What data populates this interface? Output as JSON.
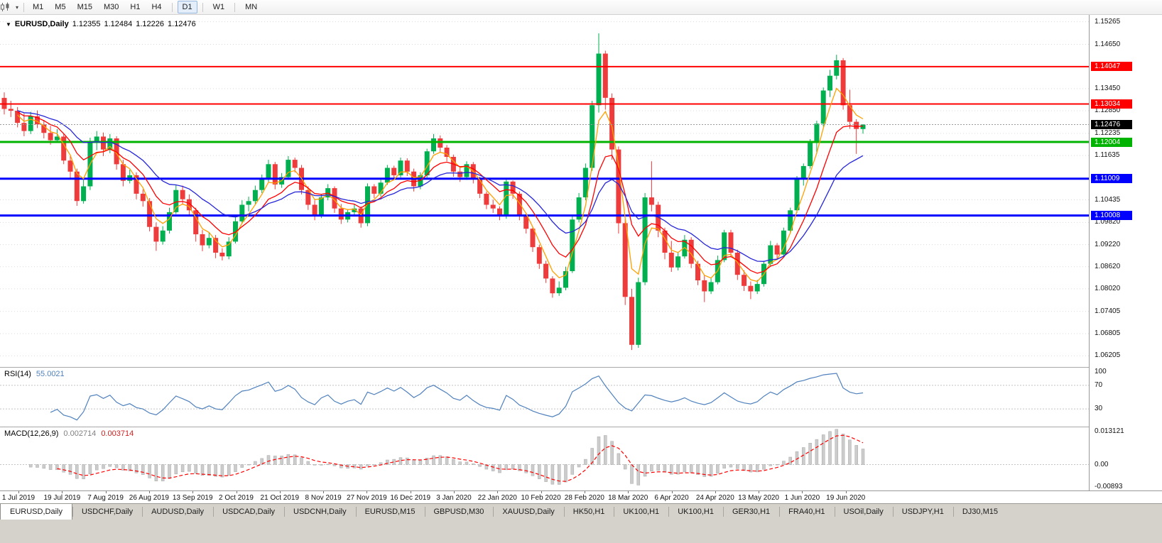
{
  "icons": {
    "chart_collapse": "▼",
    "dropdown_caret": "▾"
  },
  "toolbar": {
    "timeframes": [
      {
        "label": "M1"
      },
      {
        "label": "M5"
      },
      {
        "label": "M15"
      },
      {
        "label": "M30"
      },
      {
        "label": "H1"
      },
      {
        "label": "H4",
        "sep_after": true
      },
      {
        "label": "D1",
        "active": true,
        "sep_after": true
      },
      {
        "label": "W1",
        "sep_after": true
      },
      {
        "label": "MN"
      }
    ]
  },
  "chart": {
    "title": {
      "symbol": "EURUSD,Daily",
      "open": "1.12355",
      "high": "1.12484",
      "low": "1.12226",
      "close": "1.12476"
    },
    "axis": {
      "price_ticks": [
        "1.15265",
        "1.14650",
        "1.13450",
        "1.12850",
        "1.12235",
        "1.11635",
        "1.10435",
        "1.09820",
        "1.09220",
        "1.08620",
        "1.08020",
        "1.07405",
        "1.06805",
        "1.06205"
      ]
    },
    "levels": [
      {
        "price": 1.14047,
        "label": "1.14047",
        "color": "#ff0000",
        "thickness": 2
      },
      {
        "price": 1.13034,
        "label": "1.13034",
        "color": "#ff0000",
        "thickness": 2
      },
      {
        "price": 1.12004,
        "label": "1.12004",
        "color": "#00b300",
        "thickness": 3
      },
      {
        "price": 1.11009,
        "label": "1.11009",
        "color": "#0000ff",
        "thickness": 3
      },
      {
        "price": 1.10008,
        "label": "1.10008",
        "color": "#0000ff",
        "thickness": 3
      }
    ],
    "current_price": {
      "price": 1.12476,
      "label": "1.12476",
      "color": "#000000"
    }
  },
  "chart_data": {
    "type": "candlestick",
    "symbol": "EURUSD",
    "timeframe": "Daily",
    "title": "EURUSD,Daily",
    "grid": true,
    "price_range": {
      "top": 1.1545,
      "bottom": 1.059
    },
    "x_labels": [
      "1 Jul 2019",
      "19 Jul 2019",
      "7 Aug 2019",
      "26 Aug 2019",
      "13 Sep 2019",
      "2 Oct 2019",
      "21 Oct 2019",
      "8 Nov 2019",
      "27 Nov 2019",
      "16 Dec 2019",
      "3 Jan 2020",
      "22 Jan 2020",
      "10 Feb 2020",
      "28 Feb 2020",
      "18 Mar 2020",
      "6 Apr 2020",
      "24 Apr 2020",
      "13 May 2020",
      "1 Jun 2020",
      "19 Jun 2020"
    ],
    "candles": [
      [
        1.132,
        1.1335,
        1.1275,
        1.129
      ],
      [
        1.129,
        1.1312,
        1.1268,
        1.1285
      ],
      [
        1.1285,
        1.1295,
        1.124,
        1.1252
      ],
      [
        1.1252,
        1.1278,
        1.1216,
        1.123
      ],
      [
        1.123,
        1.1282,
        1.1222,
        1.127
      ],
      [
        1.127,
        1.1286,
        1.1238,
        1.1248
      ],
      [
        1.1248,
        1.126,
        1.121,
        1.1225
      ],
      [
        1.1225,
        1.1244,
        1.1193,
        1.1205
      ],
      [
        1.1205,
        1.1235,
        1.1198,
        1.1215
      ],
      [
        1.1215,
        1.1222,
        1.114,
        1.115
      ],
      [
        1.115,
        1.1162,
        1.1102,
        1.112
      ],
      [
        1.112,
        1.1128,
        1.1027,
        1.104
      ],
      [
        1.104,
        1.1098,
        1.1033,
        1.108
      ],
      [
        1.108,
        1.1212,
        1.107,
        1.12
      ],
      [
        1.12,
        1.123,
        1.1178,
        1.1215
      ],
      [
        1.1215,
        1.1226,
        1.1162,
        1.118
      ],
      [
        1.118,
        1.1222,
        1.117,
        1.121
      ],
      [
        1.121,
        1.1216,
        1.1125,
        1.114
      ],
      [
        1.114,
        1.1152,
        1.108,
        1.1095
      ],
      [
        1.1095,
        1.1125,
        1.1088,
        1.111
      ],
      [
        1.111,
        1.1118,
        1.1045,
        1.106
      ],
      [
        1.106,
        1.1072,
        1.1025,
        1.104
      ],
      [
        1.104,
        1.1048,
        1.0958,
        1.097
      ],
      [
        1.097,
        1.0982,
        1.0905,
        1.093
      ],
      [
        1.093,
        1.0972,
        1.0922,
        1.096
      ],
      [
        1.096,
        1.1022,
        1.0952,
        1.101
      ],
      [
        1.101,
        1.1085,
        1.1005,
        1.107
      ],
      [
        1.107,
        1.1082,
        1.103,
        1.1045
      ],
      [
        1.1045,
        1.1058,
        1.0998,
        1.1015
      ],
      [
        1.1015,
        1.1022,
        1.093,
        1.095
      ],
      [
        1.095,
        1.0962,
        1.0904,
        1.092
      ],
      [
        1.092,
        1.0955,
        1.0912,
        1.094
      ],
      [
        1.094,
        1.0948,
        1.0885,
        1.09
      ],
      [
        1.09,
        1.0912,
        1.0879,
        1.089
      ],
      [
        1.089,
        1.0942,
        1.0882,
        1.093
      ],
      [
        1.093,
        1.0996,
        1.0925,
        1.0985
      ],
      [
        1.0985,
        1.1042,
        1.098,
        1.103
      ],
      [
        1.103,
        1.1052,
        1.1012,
        1.104
      ],
      [
        1.104,
        1.1082,
        1.1032,
        1.107
      ],
      [
        1.107,
        1.1112,
        1.1062,
        1.11
      ],
      [
        1.11,
        1.1152,
        1.1092,
        1.114
      ],
      [
        1.114,
        1.1146,
        1.1072,
        1.1085
      ],
      [
        1.1085,
        1.1116,
        1.1076,
        1.1105
      ],
      [
        1.1105,
        1.1162,
        1.1098,
        1.1152
      ],
      [
        1.1152,
        1.1158,
        1.1118,
        1.113
      ],
      [
        1.113,
        1.1138,
        1.1058,
        1.107
      ],
      [
        1.107,
        1.108,
        1.1016,
        1.103
      ],
      [
        1.103,
        1.1042,
        1.0988,
        1.1
      ],
      [
        1.1,
        1.1058,
        1.0994,
        1.105
      ],
      [
        1.105,
        1.1086,
        1.1042,
        1.1075
      ],
      [
        1.1075,
        1.108,
        1.1008,
        1.102
      ],
      [
        1.102,
        1.1032,
        1.0978,
        1.099
      ],
      [
        1.099,
        1.1018,
        1.0982,
        1.101
      ],
      [
        1.101,
        1.1032,
        1.1,
        1.102
      ],
      [
        1.102,
        1.1026,
        1.0968,
        1.098
      ],
      [
        1.098,
        1.1088,
        1.0972,
        1.108
      ],
      [
        1.108,
        1.1086,
        1.1048,
        1.106
      ],
      [
        1.106,
        1.1098,
        1.1052,
        1.109
      ],
      [
        1.109,
        1.1138,
        1.1084,
        1.113
      ],
      [
        1.113,
        1.1136,
        1.1098,
        1.111
      ],
      [
        1.111,
        1.1158,
        1.1104,
        1.115
      ],
      [
        1.115,
        1.1156,
        1.1108,
        1.112
      ],
      [
        1.112,
        1.1128,
        1.1066,
        1.108
      ],
      [
        1.108,
        1.1118,
        1.1072,
        1.111
      ],
      [
        1.111,
        1.1182,
        1.1104,
        1.1175
      ],
      [
        1.1175,
        1.1222,
        1.1168,
        1.121
      ],
      [
        1.121,
        1.1218,
        1.1172,
        1.1185
      ],
      [
        1.1185,
        1.1192,
        1.1148,
        1.116
      ],
      [
        1.116,
        1.1166,
        1.1106,
        1.112
      ],
      [
        1.112,
        1.1132,
        1.1092,
        1.1105
      ],
      [
        1.1105,
        1.1148,
        1.1098,
        1.114
      ],
      [
        1.114,
        1.1146,
        1.1088,
        1.11
      ],
      [
        1.11,
        1.1106,
        1.1048,
        1.106
      ],
      [
        1.106,
        1.1066,
        1.1018,
        1.103
      ],
      [
        1.103,
        1.1044,
        1.1008,
        1.102
      ],
      [
        1.102,
        1.1026,
        1.0988,
        1.1
      ],
      [
        1.1,
        1.1098,
        1.0992,
        1.1093
      ],
      [
        1.1093,
        1.1096,
        1.1046,
        1.106
      ],
      [
        1.106,
        1.1066,
        1.0988,
        1.1
      ],
      [
        1.1,
        1.1008,
        1.0952,
        1.0965
      ],
      [
        1.0965,
        1.0972,
        1.0902,
        1.0915
      ],
      [
        1.0915,
        1.0922,
        1.0856,
        1.087
      ],
      [
        1.087,
        1.0878,
        1.0818,
        1.083
      ],
      [
        1.083,
        1.0836,
        1.0778,
        1.079
      ],
      [
        1.079,
        1.0822,
        1.0783,
        1.0805
      ],
      [
        1.0805,
        1.0862,
        1.0798,
        1.085
      ],
      [
        1.085,
        1.0998,
        1.0845,
        1.099
      ],
      [
        1.099,
        1.1062,
        1.0982,
        1.105
      ],
      [
        1.105,
        1.1142,
        1.1042,
        1.113
      ],
      [
        1.113,
        1.1312,
        1.1122,
        1.13
      ],
      [
        1.13,
        1.1495,
        1.128,
        1.144
      ],
      [
        1.144,
        1.1448,
        1.1288,
        1.132
      ],
      [
        1.132,
        1.1332,
        1.1152,
        1.118
      ],
      [
        1.118,
        1.1188,
        1.0952,
        1.098
      ],
      [
        1.098,
        1.0992,
        1.0758,
        1.078
      ],
      [
        1.078,
        1.0802,
        1.0636,
        1.065
      ],
      [
        1.065,
        1.0832,
        1.0642,
        1.082
      ],
      [
        1.082,
        1.1062,
        1.0812,
        1.105
      ],
      [
        1.105,
        1.1148,
        1.1012,
        1.103
      ],
      [
        1.103,
        1.1038,
        1.0942,
        1.096
      ],
      [
        1.096,
        1.0968,
        1.0882,
        1.09
      ],
      [
        1.09,
        1.0932,
        1.0848,
        1.086
      ],
      [
        1.086,
        1.0902,
        1.0852,
        1.089
      ],
      [
        1.089,
        1.0948,
        1.0884,
        1.0935
      ],
      [
        1.0935,
        1.0942,
        1.0858,
        1.087
      ],
      [
        1.087,
        1.0878,
        1.0812,
        1.0825
      ],
      [
        1.0825,
        1.0838,
        1.0766,
        1.0795
      ],
      [
        1.0795,
        1.0832,
        1.0788,
        1.082
      ],
      [
        1.082,
        1.0892,
        1.0814,
        1.088
      ],
      [
        1.088,
        1.0962,
        1.0874,
        1.0955
      ],
      [
        1.0955,
        1.0962,
        1.0888,
        1.09
      ],
      [
        1.09,
        1.0908,
        1.0826,
        1.084
      ],
      [
        1.084,
        1.0852,
        1.0796,
        1.081
      ],
      [
        1.081,
        1.0822,
        1.0774,
        1.0795
      ],
      [
        1.0795,
        1.0826,
        1.0788,
        1.0815
      ],
      [
        1.0815,
        1.0878,
        1.0808,
        1.087
      ],
      [
        1.087,
        1.0932,
        1.0864,
        1.092
      ],
      [
        1.092,
        1.0926,
        1.0882,
        1.0895
      ],
      [
        1.0895,
        1.0968,
        1.0888,
        1.096
      ],
      [
        1.096,
        1.1022,
        1.0954,
        1.1015
      ],
      [
        1.1015,
        1.1108,
        1.1008,
        1.11
      ],
      [
        1.11,
        1.1142,
        1.1082,
        1.1135
      ],
      [
        1.1135,
        1.1208,
        1.1128,
        1.12
      ],
      [
        1.12,
        1.1258,
        1.1168,
        1.125
      ],
      [
        1.125,
        1.1348,
        1.1242,
        1.134
      ],
      [
        1.134,
        1.1396,
        1.1322,
        1.138
      ],
      [
        1.138,
        1.1437,
        1.137,
        1.1422
      ],
      [
        1.1422,
        1.1428,
        1.1288,
        1.13
      ],
      [
        1.13,
        1.1342,
        1.1236,
        1.1255
      ],
      [
        1.1255,
        1.1262,
        1.1168,
        1.12355
      ],
      [
        1.12355,
        1.12484,
        1.12226,
        1.12476
      ]
    ],
    "moving_averages": [
      {
        "name": "fast-ma",
        "period": 4,
        "method": "ema",
        "color": "#ffa000"
      },
      {
        "name": "mid-ma",
        "period": 9,
        "method": "ema",
        "color": "#ff0000"
      },
      {
        "name": "slow-ma",
        "period": 18,
        "method": "ema",
        "color": "#2626d8"
      }
    ],
    "indicators": {
      "rsi": {
        "label": "RSI(14)",
        "value": "55.0021",
        "levels": [
          70,
          30
        ],
        "scale": [
          0,
          100
        ],
        "axis_labels": [
          "100",
          "70",
          "30"
        ],
        "color": "#4f81bd"
      },
      "macd": {
        "label": "MACD(12,26,9)",
        "values": [
          "0.002714",
          "0.003714"
        ],
        "axis_labels": [
          "0.013121",
          "0.00",
          "-0.00893"
        ],
        "scale_max": 0.0138,
        "scale_min": -0.0096,
        "hist_color": "#cccccc",
        "hist_border": "#a8a8a8",
        "signal_color": "#ff0000"
      }
    }
  },
  "tabs": [
    {
      "label": "EURUSD,Daily",
      "active": true
    },
    {
      "label": "USDCHF,Daily"
    },
    {
      "label": "AUDUSD,Daily"
    },
    {
      "label": "USDCAD,Daily"
    },
    {
      "label": "USDCNH,Daily"
    },
    {
      "label": "EURUSD,M15"
    },
    {
      "label": "GBPUSD,M30"
    },
    {
      "label": "XAUUSD,Daily"
    },
    {
      "label": "HK50,H1"
    },
    {
      "label": "UK100,H1"
    },
    {
      "label": "UK100,H1"
    },
    {
      "label": "GER30,H1"
    },
    {
      "label": "FRA40,H1"
    },
    {
      "label": "USOil,Daily"
    },
    {
      "label": "USDJPY,H1"
    },
    {
      "label": "DJ30,M15"
    }
  ],
  "colors": {
    "candle_up": "#00b050",
    "candle_down": "#ee3b3b",
    "grid": "#dadada",
    "current_price_line": "#9a9a9a",
    "indicator_level_line": "#c4c4c4"
  }
}
